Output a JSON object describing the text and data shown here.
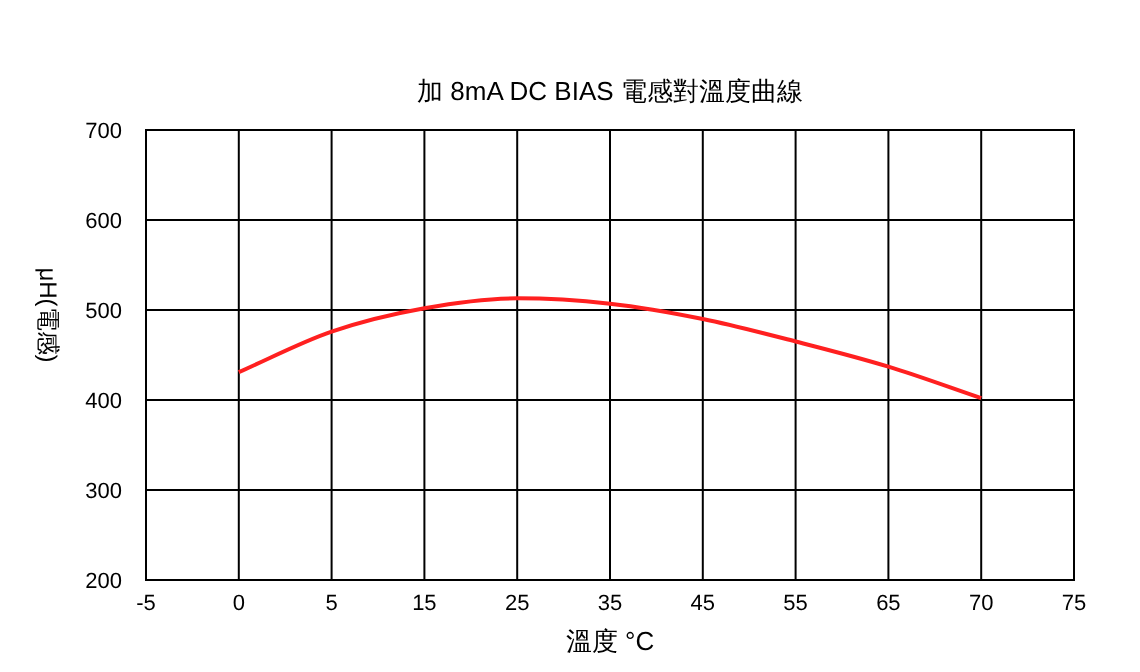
{
  "chart_data": {
    "type": "line",
    "title": "加 8mA DC BIAS 電感對溫度曲線",
    "xlabel": "溫度 °C",
    "ylabel": "μH(電感)",
    "categories": [
      "-5",
      "0",
      "5",
      "15",
      "25",
      "35",
      "45",
      "55",
      "65",
      "70",
      "75"
    ],
    "series": [
      {
        "color": "#ff2020",
        "values": [
          null,
          431,
          476,
          502,
          513,
          507,
          490,
          465,
          437,
          402,
          null
        ]
      }
    ],
    "ylim": [
      200,
      700
    ],
    "yticks": [
      200,
      300,
      400,
      500,
      600,
      700
    ],
    "grid": true
  }
}
